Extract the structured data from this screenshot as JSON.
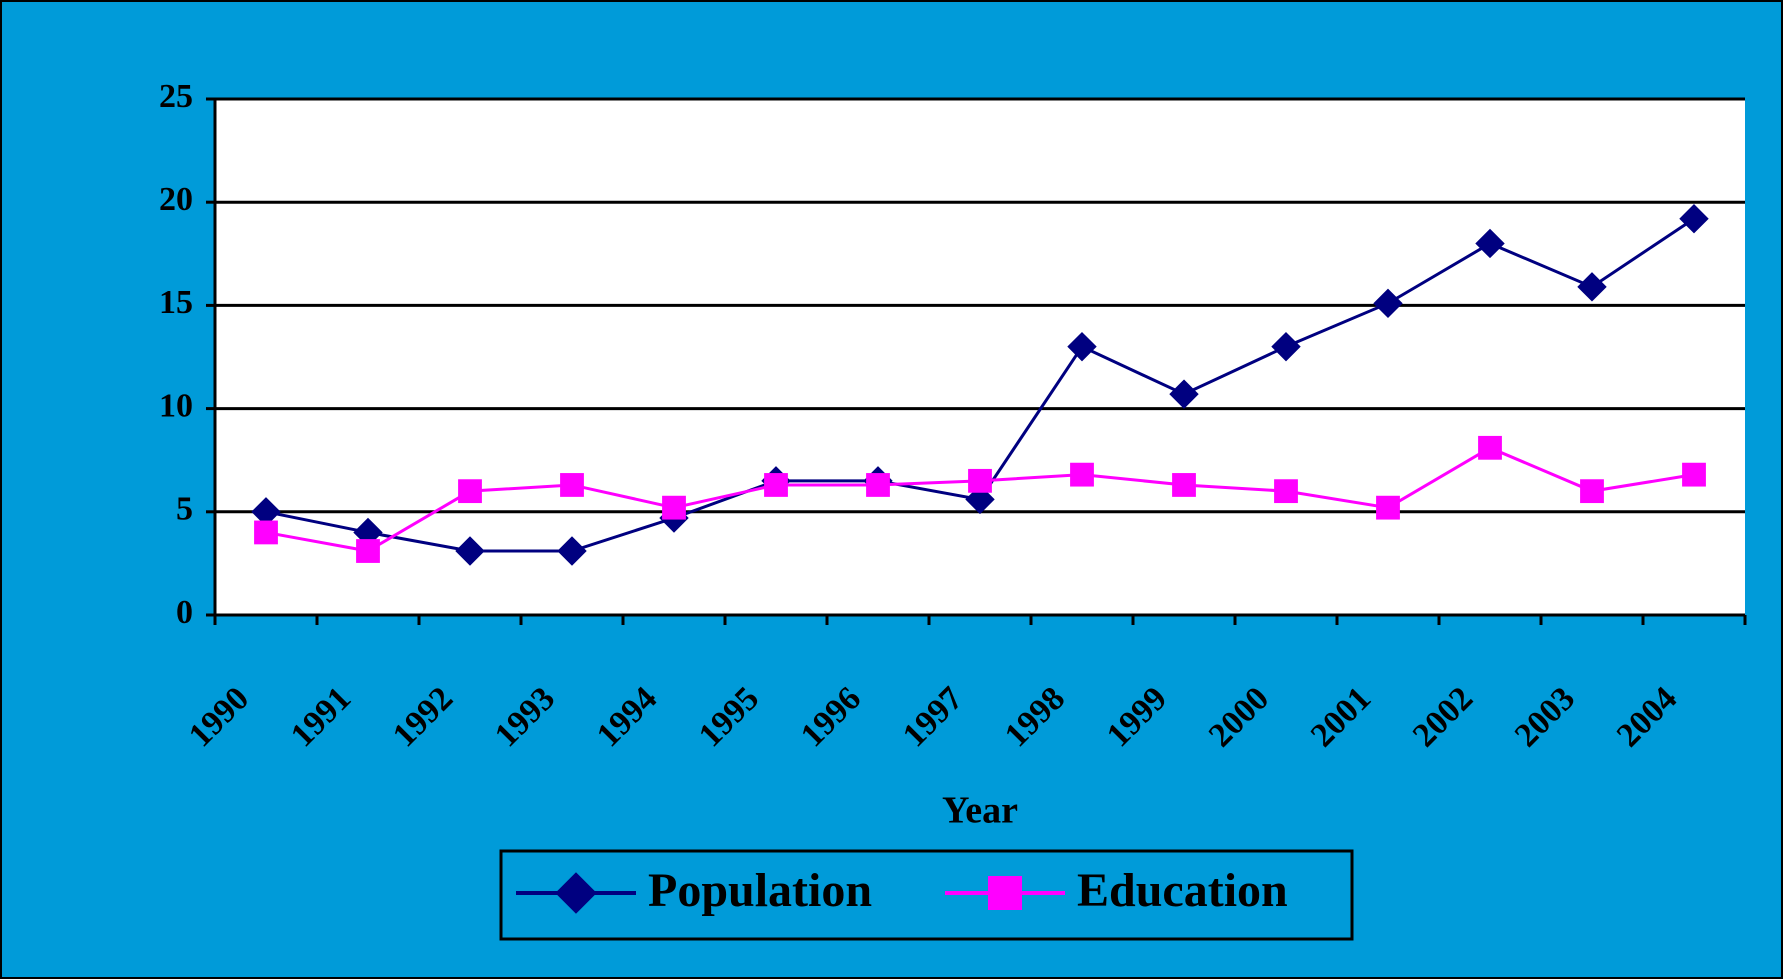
{
  "chart_data": {
    "type": "line",
    "x_label": "Year",
    "categories": [
      "1990",
      "1991",
      "1992",
      "1993",
      "1994",
      "1995",
      "1996",
      "1997",
      "1998",
      "1999",
      "2000",
      "2001",
      "2002",
      "2003",
      "2004"
    ],
    "series": [
      {
        "name": "Population",
        "color": "#000080",
        "marker": "diamond",
        "values": [
          5,
          4,
          3.1,
          3.1,
          4.7,
          6.5,
          6.5,
          5.6,
          13,
          10.7,
          13,
          15.1,
          18,
          15.9,
          19.2
        ]
      },
      {
        "name": "Education",
        "color": "#ff00ff",
        "marker": "square",
        "values": [
          4,
          3.1,
          6,
          6.3,
          5.2,
          6.3,
          6.3,
          6.5,
          6.8,
          6.3,
          6,
          5.2,
          8.1,
          6,
          6.8
        ]
      }
    ],
    "ylim": [
      0,
      25
    ],
    "yticks": [
      0,
      5,
      10,
      15,
      20,
      25
    ],
    "grid": true,
    "legend": "bottom"
  }
}
